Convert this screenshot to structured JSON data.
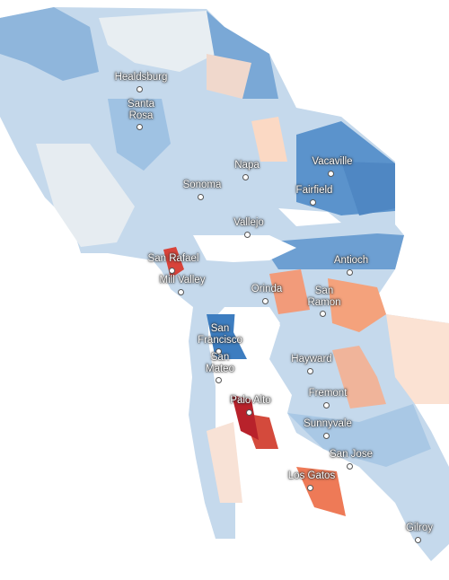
{
  "places": [
    "Healdsburg",
    "Santa Rosa",
    "Sonoma",
    "Napa",
    "Vacaville",
    "Fairfield",
    "Vallejo",
    "San Rafael",
    "Mill Valley",
    "Antioch",
    "Orinda",
    "San Ramon",
    "San Francisco",
    "Hayward",
    "San Mateo",
    "Fremont",
    "Palo Alto",
    "Sunnyvale",
    "San Jose",
    "Los Gatos",
    "Gilroy"
  ]
}
